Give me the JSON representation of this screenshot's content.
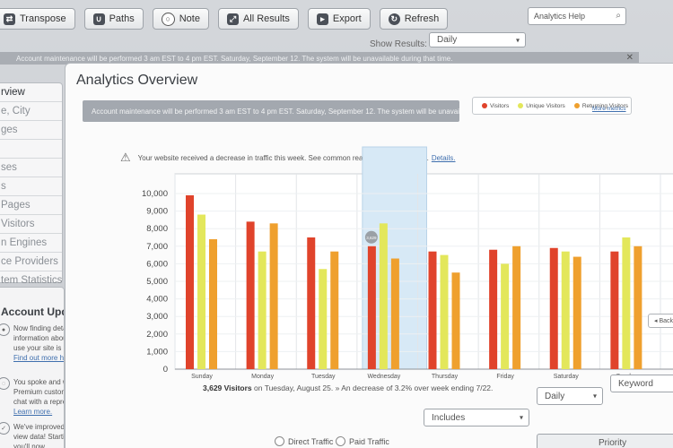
{
  "toolbar": {
    "transpose": "Transpose",
    "paths": "Paths",
    "note": "Note",
    "all_results": "All Results",
    "export": "Export",
    "refresh": "Refresh",
    "help_placeholder": "Analytics Help"
  },
  "show_results": {
    "label": "Show Results:",
    "value": "Daily"
  },
  "top_notice": "Account maintenance will be performed 3 am EST to 4 pm EST. Saturday, September 12. The system will be unavailable during that time.",
  "sidebar": {
    "items": [
      {
        "label": "rview",
        "active": true
      },
      {
        "label": "e, City"
      },
      {
        "label": "ges"
      },
      {
        "label": ""
      },
      {
        "label": "ses"
      },
      {
        "label": "s"
      },
      {
        "label": "Pages"
      },
      {
        "label": "Visitors"
      },
      {
        "label": "n Engines"
      },
      {
        "label": "ce Providers"
      },
      {
        "label": "tem Statistics"
      }
    ]
  },
  "updates": {
    "title": "Account Updates",
    "items": [
      {
        "text": "Now finding detailed information about how visitors use your site is expanding.",
        "link": "Find out more here."
      },
      {
        "text": "You spoke and we listened. Premium customers can live chat with a representative.",
        "link": "Learn more."
      },
      {
        "text": "We've improved the way you view data! Starting this week you'll now",
        "link": ""
      }
    ]
  },
  "main": {
    "title": "Analytics Overview",
    "maintenance": "Account maintenance will be performed 3 am EST to 4 pm EST. Saturday, September 12. The system will be unavailable during that time.",
    "warning": "Your website received a decrease in traffic this week. See common reasons for fluctuations.",
    "warning_link": "Details.",
    "more_metrics": "More metrics",
    "summary_bold": "3,629 Visitors",
    "summary_rest": " on Tuesday, August 25. » An decrease of 3.2% over week ending 7/22.",
    "back": "◂ Back",
    "highlight_label": "3,629"
  },
  "filters": {
    "includes": "Includes",
    "daily": "Daily",
    "keyword": "Keyword",
    "direct": "Direct Traffic",
    "paid": "Paid Traffic",
    "priority": "Priority"
  },
  "colors": {
    "visitors": "#e0432b",
    "unique": "#e3e75b",
    "returning": "#efa02e",
    "highlight": "#d7e9f6"
  },
  "chart_data": {
    "type": "bar",
    "title": "",
    "categories": [
      "Sunday",
      "Monday",
      "Tuesday",
      "Wednesday",
      "Thursday",
      "Friday",
      "Saturday",
      "Sunday"
    ],
    "series": [
      {
        "name": "Visitors",
        "values": [
          9900,
          8400,
          7500,
          7000,
          6700,
          6800,
          6900,
          6700
        ]
      },
      {
        "name": "Unique Visitors",
        "values": [
          8800,
          6700,
          5700,
          8300,
          6500,
          6000,
          6700,
          7500
        ]
      },
      {
        "name": "Returning Visitors",
        "values": [
          7400,
          8300,
          6700,
          6300,
          5500,
          7000,
          6400,
          7000
        ]
      }
    ],
    "y_ticks": [
      "10,000",
      "9,000",
      "8,000",
      "7,000",
      "6,000",
      "5,000",
      "4,000",
      "3,000",
      "2,000",
      "1,000",
      "0"
    ],
    "ylim": [
      0,
      10000
    ],
    "highlight_category": "Wednesday"
  }
}
